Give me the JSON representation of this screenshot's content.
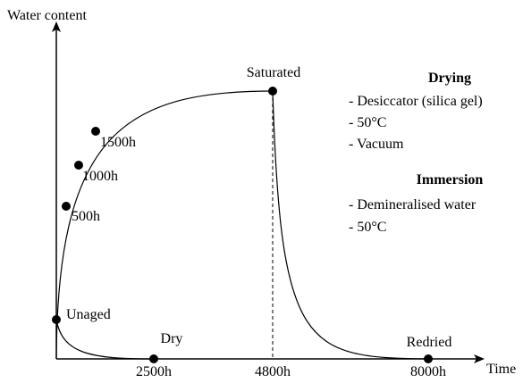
{
  "axes": {
    "y_label": "Water content",
    "x_label": "Time"
  },
  "x_ticks": [
    "2500h",
    "4800h",
    "8000h"
  ],
  "points": {
    "unaged": "Unaged",
    "p500": "500h",
    "p1000": "1000h",
    "p1500": "1500h",
    "saturated": "Saturated",
    "dry": "Dry",
    "redried": "Redried"
  },
  "legend": {
    "drying": {
      "title": "Drying",
      "items": [
        "- Desiccator (silica gel)",
        "- 50°C",
        "- Vacuum"
      ]
    },
    "immersion": {
      "title": "Immersion",
      "items": [
        "- Demineralised water",
        "- 50°C"
      ]
    }
  }
}
